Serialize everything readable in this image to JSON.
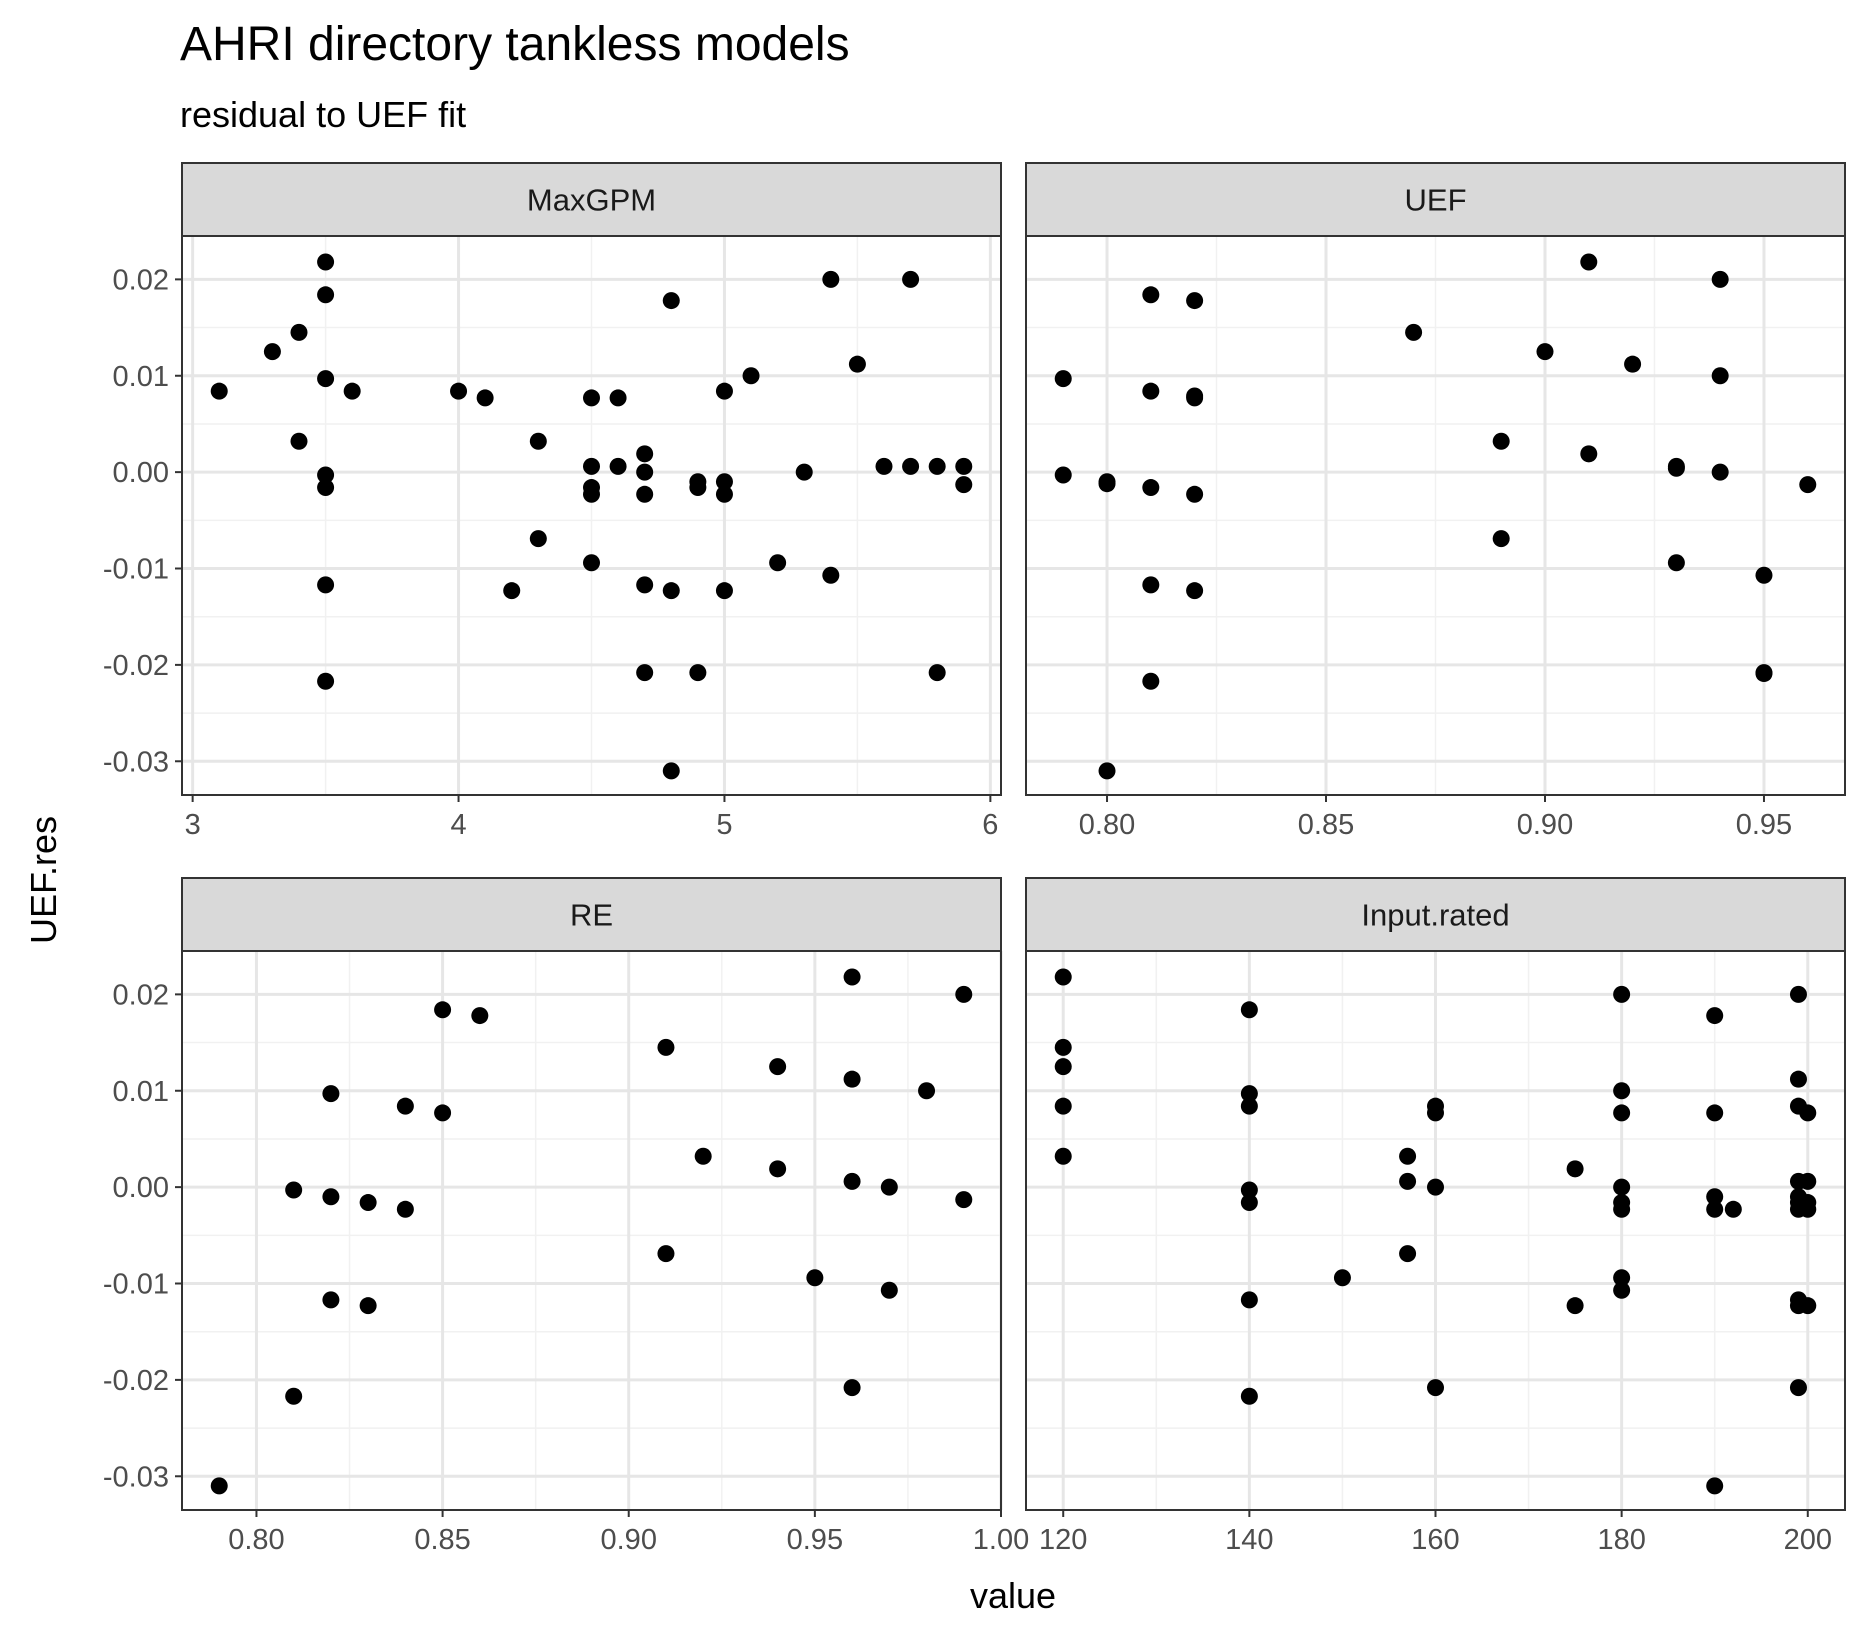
{
  "chart_data": {
    "type": "scatter",
    "title": "AHRI directory tankless models",
    "subtitle": "residual to UEF fit",
    "xlabel": "value",
    "ylabel": "UEF.res",
    "ylim": [
      -0.0335,
      0.0245
    ],
    "y_ticks": [
      0.02,
      0.01,
      0.0,
      -0.01,
      -0.02,
      -0.03
    ],
    "y_tick_labels": [
      "0.02",
      "0.01",
      "0.00",
      "-0.01",
      "-0.02",
      "-0.03"
    ],
    "grid": true,
    "point_color": "#000000",
    "strip_color": "#d9d9d9",
    "panels": [
      {
        "name": "MaxGPM",
        "xlim": [
          2.96,
          6.04
        ],
        "x_ticks": [
          3,
          4,
          5,
          6
        ],
        "x_tick_labels": [
          "3",
          "4",
          "5",
          "6"
        ],
        "points": [
          [
            3.1,
            0.0084
          ],
          [
            3.3,
            0.0125
          ],
          [
            3.4,
            0.0145
          ],
          [
            3.4,
            0.0032
          ],
          [
            3.5,
            0.0218
          ],
          [
            3.5,
            0.0184
          ],
          [
            3.5,
            0.0097
          ],
          [
            3.5,
            -0.0003
          ],
          [
            3.5,
            -0.0016
          ],
          [
            3.5,
            -0.0117
          ],
          [
            3.5,
            -0.0217
          ],
          [
            3.6,
            0.0084
          ],
          [
            4.0,
            0.0084
          ],
          [
            4.1,
            0.0077
          ],
          [
            4.2,
            -0.0123
          ],
          [
            4.3,
            0.0032
          ],
          [
            4.3,
            -0.0069
          ],
          [
            4.5,
            0.0077
          ],
          [
            4.5,
            0.0006
          ],
          [
            4.5,
            -0.0016
          ],
          [
            4.5,
            -0.0023
          ],
          [
            4.5,
            -0.0094
          ],
          [
            4.6,
            0.0077
          ],
          [
            4.6,
            0.0006
          ],
          [
            4.7,
            0.0019
          ],
          [
            4.7,
            0.0
          ],
          [
            4.7,
            -0.0023
          ],
          [
            4.7,
            -0.0117
          ],
          [
            4.7,
            -0.0208
          ],
          [
            4.8,
            0.0178
          ],
          [
            4.8,
            -0.0123
          ],
          [
            4.8,
            -0.031
          ],
          [
            4.9,
            -0.001
          ],
          [
            4.9,
            -0.0016
          ],
          [
            4.9,
            -0.0208
          ],
          [
            5.0,
            0.0084
          ],
          [
            5.0,
            -0.001
          ],
          [
            5.0,
            -0.0023
          ],
          [
            5.0,
            -0.0123
          ],
          [
            5.1,
            0.01
          ],
          [
            5.2,
            -0.0094
          ],
          [
            5.3,
            0.0
          ],
          [
            5.4,
            0.02
          ],
          [
            5.4,
            -0.0107
          ],
          [
            5.5,
            0.0112
          ],
          [
            5.6,
            0.0006
          ],
          [
            5.7,
            0.02
          ],
          [
            5.7,
            0.0006
          ],
          [
            5.8,
            0.0006
          ],
          [
            5.8,
            -0.0208
          ],
          [
            5.9,
            0.0006
          ],
          [
            5.9,
            -0.0013
          ]
        ]
      },
      {
        "name": "UEF",
        "xlim": [
          0.7815,
          0.9685
        ],
        "x_ticks": [
          0.8,
          0.85,
          0.9,
          0.95
        ],
        "x_tick_labels": [
          "0.80",
          "0.85",
          "0.90",
          "0.95"
        ],
        "points": [
          [
            0.79,
            0.0097
          ],
          [
            0.79,
            -0.0003
          ],
          [
            0.8,
            -0.001
          ],
          [
            0.8,
            -0.0012
          ],
          [
            0.8,
            -0.031
          ],
          [
            0.81,
            0.0184
          ],
          [
            0.81,
            0.0084
          ],
          [
            0.81,
            -0.0016
          ],
          [
            0.81,
            -0.0117
          ],
          [
            0.81,
            -0.0217
          ],
          [
            0.82,
            0.0178
          ],
          [
            0.82,
            0.0077
          ],
          [
            0.82,
            0.0079
          ],
          [
            0.82,
            -0.0023
          ],
          [
            0.82,
            -0.0123
          ],
          [
            0.87,
            0.0145
          ],
          [
            0.89,
            0.0032
          ],
          [
            0.89,
            -0.0069
          ],
          [
            0.9,
            0.0125
          ],
          [
            0.91,
            0.0218
          ],
          [
            0.91,
            0.0019
          ],
          [
            0.92,
            0.0112
          ],
          [
            0.93,
            0.0006
          ],
          [
            0.93,
            0.0004
          ],
          [
            0.93,
            -0.0094
          ],
          [
            0.94,
            0.02
          ],
          [
            0.94,
            0.01
          ],
          [
            0.94,
            0.0
          ],
          [
            0.95,
            -0.0107
          ],
          [
            0.95,
            -0.0208
          ],
          [
            0.95,
            -0.0209
          ],
          [
            0.96,
            -0.0013
          ]
        ]
      },
      {
        "name": "RE",
        "xlim": [
          0.78,
          1.0
        ],
        "x_ticks": [
          0.8,
          0.85,
          0.9,
          0.95,
          1.0
        ],
        "x_tick_labels": [
          "0.80",
          "0.85",
          "0.90",
          "0.95",
          "1.00"
        ],
        "points": [
          [
            0.79,
            -0.031
          ],
          [
            0.81,
            -0.0003
          ],
          [
            0.81,
            -0.0217
          ],
          [
            0.82,
            0.0097
          ],
          [
            0.82,
            -0.001
          ],
          [
            0.82,
            -0.0117
          ],
          [
            0.83,
            -0.0016
          ],
          [
            0.83,
            -0.0123
          ],
          [
            0.84,
            0.0084
          ],
          [
            0.84,
            -0.0023
          ],
          [
            0.85,
            0.0184
          ],
          [
            0.85,
            0.0077
          ],
          [
            0.86,
            0.0178
          ],
          [
            0.91,
            0.0145
          ],
          [
            0.91,
            -0.0069
          ],
          [
            0.92,
            0.0032
          ],
          [
            0.94,
            0.0125
          ],
          [
            0.94,
            0.0019
          ],
          [
            0.95,
            -0.0094
          ],
          [
            0.96,
            0.0218
          ],
          [
            0.96,
            0.0112
          ],
          [
            0.96,
            0.0006
          ],
          [
            0.96,
            -0.0208
          ],
          [
            0.97,
            0.0
          ],
          [
            0.97,
            -0.0107
          ],
          [
            0.98,
            0.01
          ],
          [
            0.99,
            0.02
          ],
          [
            0.99,
            -0.0013
          ]
        ]
      },
      {
        "name": "Input.rated",
        "xlim": [
          116.0,
          204.0
        ],
        "x_ticks": [
          120,
          140,
          160,
          180,
          200
        ],
        "x_tick_labels": [
          "120",
          "140",
          "160",
          "180",
          "200"
        ],
        "points": [
          [
            120,
            0.0218
          ],
          [
            120,
            0.0145
          ],
          [
            120,
            0.0125
          ],
          [
            120,
            0.0084
          ],
          [
            120,
            0.0032
          ],
          [
            140,
            0.0184
          ],
          [
            140,
            0.0097
          ],
          [
            140,
            0.0084
          ],
          [
            140,
            -0.0003
          ],
          [
            140,
            -0.0016
          ],
          [
            140,
            -0.0117
          ],
          [
            140,
            -0.0217
          ],
          [
            150,
            -0.0094
          ],
          [
            157,
            0.0032
          ],
          [
            157,
            0.0006
          ],
          [
            157,
            -0.0069
          ],
          [
            160,
            0.0084
          ],
          [
            160,
            0.0077
          ],
          [
            160,
            0.0
          ],
          [
            160,
            -0.0208
          ],
          [
            175,
            0.0019
          ],
          [
            175,
            -0.0123
          ],
          [
            180,
            0.02
          ],
          [
            180,
            0.01
          ],
          [
            180,
            0.0077
          ],
          [
            180,
            0.0
          ],
          [
            180,
            -0.0016
          ],
          [
            180,
            -0.0023
          ],
          [
            180,
            -0.0094
          ],
          [
            180,
            -0.0107
          ],
          [
            190,
            0.0178
          ],
          [
            190,
            0.0077
          ],
          [
            190,
            -0.001
          ],
          [
            190,
            -0.0023
          ],
          [
            190,
            -0.031
          ],
          [
            192,
            -0.0023
          ],
          [
            199,
            0.02
          ],
          [
            199,
            0.0112
          ],
          [
            199,
            0.0084
          ],
          [
            199,
            0.0006
          ],
          [
            199,
            -0.001
          ],
          [
            199,
            -0.0016
          ],
          [
            199,
            -0.0023
          ],
          [
            199,
            -0.0117
          ],
          [
            199,
            -0.0123
          ],
          [
            199,
            -0.0208
          ],
          [
            200,
            0.0077
          ],
          [
            200,
            0.0006
          ],
          [
            200,
            -0.0016
          ],
          [
            200,
            -0.0023
          ],
          [
            200,
            -0.0123
          ]
        ]
      }
    ]
  }
}
